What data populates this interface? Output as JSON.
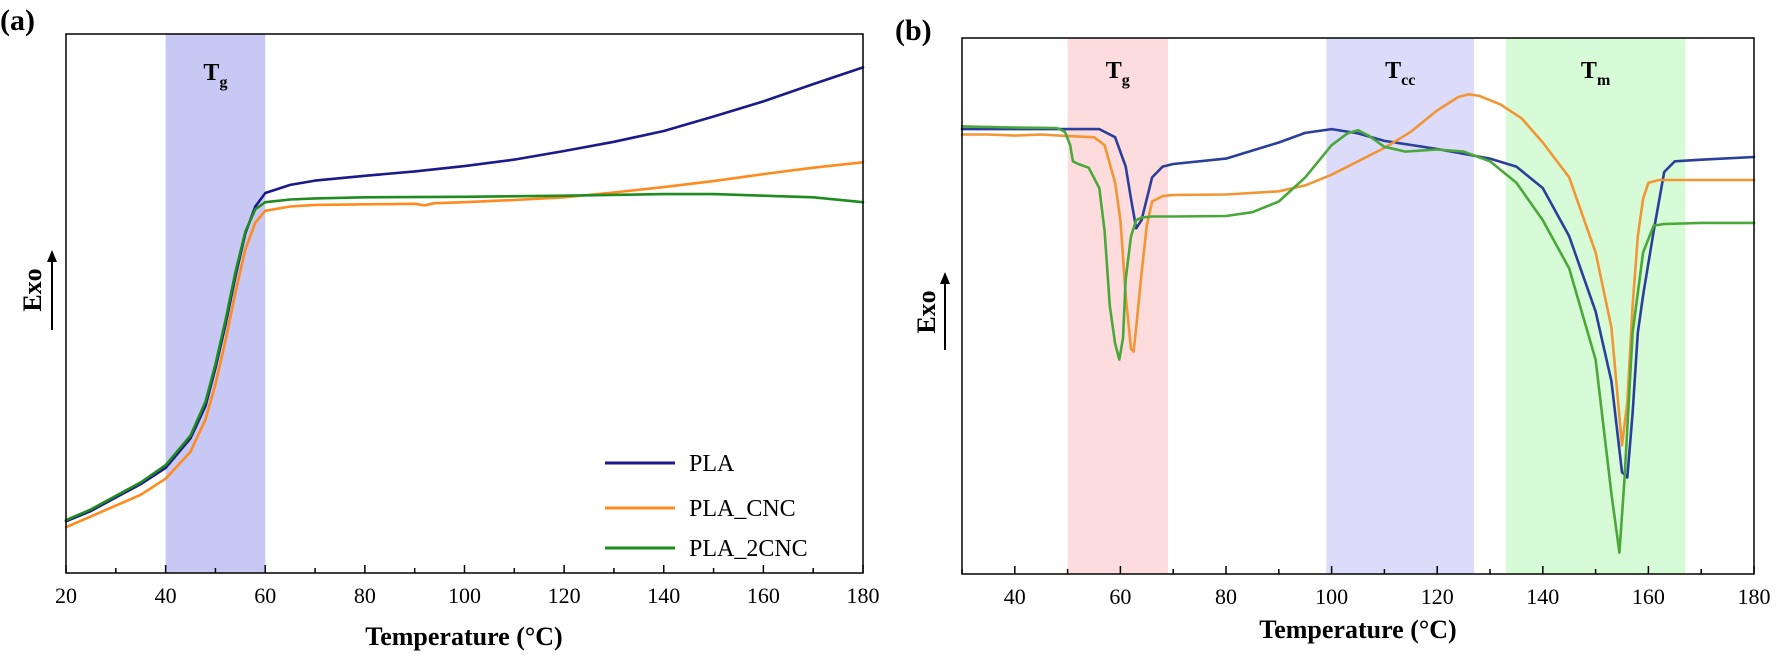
{
  "chart_data": [
    {
      "panel_label": "(a)",
      "type": "line",
      "xlabel": "Temperature (°C)",
      "ylabel": "Exo",
      "xlim": [
        20,
        180
      ],
      "ylim": [
        0,
        1
      ],
      "x_ticks": [
        20,
        40,
        60,
        80,
        100,
        120,
        140,
        160,
        180
      ],
      "y_ticks_shown": false,
      "legend_position": "bottom-right",
      "bands": [
        {
          "label": "T",
          "subscript": "g",
          "x_range": [
            40,
            60
          ],
          "color": "#c8c8f5"
        }
      ],
      "series": [
        {
          "name": "PLA",
          "color": "#1a1a8c",
          "points": [
            [
              20,
              0.096
            ],
            [
              25,
              0.115
            ],
            [
              30,
              0.14
            ],
            [
              35,
              0.165
            ],
            [
              40,
              0.195
            ],
            [
              45,
              0.25
            ],
            [
              48,
              0.31
            ],
            [
              50,
              0.38
            ],
            [
              52,
              0.46
            ],
            [
              54,
              0.55
            ],
            [
              56,
              0.63
            ],
            [
              58,
              0.68
            ],
            [
              60,
              0.705
            ],
            [
              65,
              0.72
            ],
            [
              70,
              0.728
            ],
            [
              80,
              0.737
            ],
            [
              90,
              0.745
            ],
            [
              100,
              0.755
            ],
            [
              110,
              0.767
            ],
            [
              120,
              0.783
            ],
            [
              130,
              0.8
            ],
            [
              140,
              0.82
            ],
            [
              150,
              0.847
            ],
            [
              160,
              0.875
            ],
            [
              170,
              0.907
            ],
            [
              180,
              0.938
            ]
          ]
        },
        {
          "name": "PLA_CNC",
          "color": "#ff8a1e",
          "points": [
            [
              20,
              0.085
            ],
            [
              25,
              0.105
            ],
            [
              30,
              0.125
            ],
            [
              35,
              0.145
            ],
            [
              40,
              0.175
            ],
            [
              45,
              0.225
            ],
            [
              48,
              0.285
            ],
            [
              50,
              0.35
            ],
            [
              52,
              0.43
            ],
            [
              54,
              0.52
            ],
            [
              56,
              0.6
            ],
            [
              58,
              0.65
            ],
            [
              60,
              0.672
            ],
            [
              65,
              0.68
            ],
            [
              70,
              0.683
            ],
            [
              80,
              0.684
            ],
            [
              90,
              0.685
            ],
            [
              92,
              0.682
            ],
            [
              94,
              0.686
            ],
            [
              100,
              0.688
            ],
            [
              110,
              0.692
            ],
            [
              120,
              0.697
            ],
            [
              130,
              0.706
            ],
            [
              140,
              0.716
            ],
            [
              150,
              0.727
            ],
            [
              160,
              0.74
            ],
            [
              170,
              0.752
            ],
            [
              180,
              0.762
            ]
          ]
        },
        {
          "name": "PLA_2CNC",
          "color": "#1e8c1e",
          "points": [
            [
              20,
              0.098
            ],
            [
              25,
              0.118
            ],
            [
              30,
              0.143
            ],
            [
              35,
              0.168
            ],
            [
              40,
              0.2
            ],
            [
              45,
              0.255
            ],
            [
              48,
              0.318
            ],
            [
              50,
              0.387
            ],
            [
              52,
              0.468
            ],
            [
              54,
              0.558
            ],
            [
              56,
              0.633
            ],
            [
              58,
              0.675
            ],
            [
              60,
              0.688
            ],
            [
              65,
              0.693
            ],
            [
              70,
              0.695
            ],
            [
              80,
              0.697
            ],
            [
              100,
              0.698
            ],
            [
              120,
              0.7
            ],
            [
              140,
              0.703
            ],
            [
              150,
              0.703
            ],
            [
              160,
              0.7
            ],
            [
              170,
              0.697
            ],
            [
              180,
              0.688
            ]
          ]
        }
      ]
    },
    {
      "panel_label": "(b)",
      "type": "line",
      "xlabel": "Temperature (°C)",
      "ylabel": "Exo",
      "xlim": [
        30,
        180
      ],
      "ylim": [
        0,
        1
      ],
      "x_ticks": [
        40,
        60,
        80,
        100,
        120,
        140,
        160,
        180
      ],
      "y_ticks_shown": false,
      "bands": [
        {
          "label": "T",
          "subscript": "g",
          "x_range": [
            50,
            69
          ],
          "color": "#fcdcdc"
        },
        {
          "label": "T",
          "subscript": "cc",
          "x_range": [
            99,
            127
          ],
          "color": "#dcdcfa"
        },
        {
          "label": "T",
          "subscript": "m",
          "x_range": [
            133,
            167
          ],
          "color": "#d6fbd6"
        }
      ],
      "series": [
        {
          "name": "PLA",
          "color": "#2a3e9c",
          "points": [
            [
              30,
              0.83
            ],
            [
              40,
              0.83
            ],
            [
              50,
              0.83
            ],
            [
              56,
              0.83
            ],
            [
              59,
              0.815
            ],
            [
              61,
              0.76
            ],
            [
              62,
              0.7
            ],
            [
              63,
              0.645
            ],
            [
              64,
              0.66
            ],
            [
              65,
              0.7
            ],
            [
              66,
              0.74
            ],
            [
              68,
              0.76
            ],
            [
              70,
              0.765
            ],
            [
              80,
              0.775
            ],
            [
              90,
              0.805
            ],
            [
              95,
              0.823
            ],
            [
              100,
              0.83
            ],
            [
              105,
              0.822
            ],
            [
              110,
              0.808
            ],
            [
              120,
              0.793
            ],
            [
              130,
              0.775
            ],
            [
              135,
              0.76
            ],
            [
              140,
              0.72
            ],
            [
              145,
              0.63
            ],
            [
              150,
              0.49
            ],
            [
              153,
              0.36
            ],
            [
              155,
              0.19
            ],
            [
              156,
              0.18
            ],
            [
              157,
              0.3
            ],
            [
              158,
              0.45
            ],
            [
              159,
              0.52
            ],
            [
              161,
              0.64
            ],
            [
              163,
              0.75
            ],
            [
              165,
              0.77
            ],
            [
              170,
              0.773
            ],
            [
              180,
              0.778
            ]
          ]
        },
        {
          "name": "PLA_CNC",
          "color": "#f29535",
          "points": [
            [
              30,
              0.82
            ],
            [
              35,
              0.82
            ],
            [
              40,
              0.818
            ],
            [
              45,
              0.82
            ],
            [
              50,
              0.817
            ],
            [
              55,
              0.815
            ],
            [
              57,
              0.8
            ],
            [
              59,
              0.73
            ],
            [
              60,
              0.66
            ],
            [
              61,
              0.52
            ],
            [
              62,
              0.42
            ],
            [
              62.5,
              0.415
            ],
            [
              63,
              0.46
            ],
            [
              64,
              0.56
            ],
            [
              65,
              0.65
            ],
            [
              66,
              0.695
            ],
            [
              68,
              0.705
            ],
            [
              70,
              0.707
            ],
            [
              80,
              0.708
            ],
            [
              90,
              0.714
            ],
            [
              95,
              0.725
            ],
            [
              100,
              0.745
            ],
            [
              105,
              0.77
            ],
            [
              110,
              0.795
            ],
            [
              115,
              0.825
            ],
            [
              120,
              0.865
            ],
            [
              124,
              0.89
            ],
            [
              126,
              0.895
            ],
            [
              128,
              0.892
            ],
            [
              132,
              0.876
            ],
            [
              136,
              0.85
            ],
            [
              140,
              0.805
            ],
            [
              145,
              0.74
            ],
            [
              150,
              0.6
            ],
            [
              153,
              0.46
            ],
            [
              155,
              0.24
            ],
            [
              156,
              0.32
            ],
            [
              157,
              0.5
            ],
            [
              158,
              0.63
            ],
            [
              159,
              0.7
            ],
            [
              160,
              0.73
            ],
            [
              162,
              0.735
            ],
            [
              170,
              0.735
            ],
            [
              180,
              0.735
            ]
          ]
        },
        {
          "name": "PLA_2CNC",
          "color": "#4aa83a",
          "points": [
            [
              30,
              0.835
            ],
            [
              40,
              0.833
            ],
            [
              48,
              0.832
            ],
            [
              49.5,
              0.825
            ],
            [
              50.5,
              0.8
            ],
            [
              51,
              0.77
            ],
            [
              52,
              0.765
            ],
            [
              54,
              0.758
            ],
            [
              56,
              0.72
            ],
            [
              57,
              0.64
            ],
            [
              58,
              0.5
            ],
            [
              59,
              0.43
            ],
            [
              59.8,
              0.4
            ],
            [
              60.5,
              0.44
            ],
            [
              61,
              0.55
            ],
            [
              62,
              0.63
            ],
            [
              63,
              0.66
            ],
            [
              64,
              0.665
            ],
            [
              66,
              0.667
            ],
            [
              70,
              0.667
            ],
            [
              80,
              0.668
            ],
            [
              85,
              0.675
            ],
            [
              90,
              0.695
            ],
            [
              95,
              0.74
            ],
            [
              100,
              0.8
            ],
            [
              103,
              0.822
            ],
            [
              105,
              0.828
            ],
            [
              107,
              0.818
            ],
            [
              110,
              0.797
            ],
            [
              114,
              0.788
            ],
            [
              120,
              0.792
            ],
            [
              125,
              0.788
            ],
            [
              130,
              0.77
            ],
            [
              135,
              0.73
            ],
            [
              140,
              0.66
            ],
            [
              145,
              0.57
            ],
            [
              150,
              0.4
            ],
            [
              153,
              0.15
            ],
            [
              154.5,
              0.04
            ],
            [
              155.5,
              0.18
            ],
            [
              157,
              0.45
            ],
            [
              159,
              0.6
            ],
            [
              161,
              0.65
            ],
            [
              163,
              0.653
            ],
            [
              170,
              0.655
            ],
            [
              180,
              0.655
            ]
          ]
        }
      ]
    }
  ]
}
